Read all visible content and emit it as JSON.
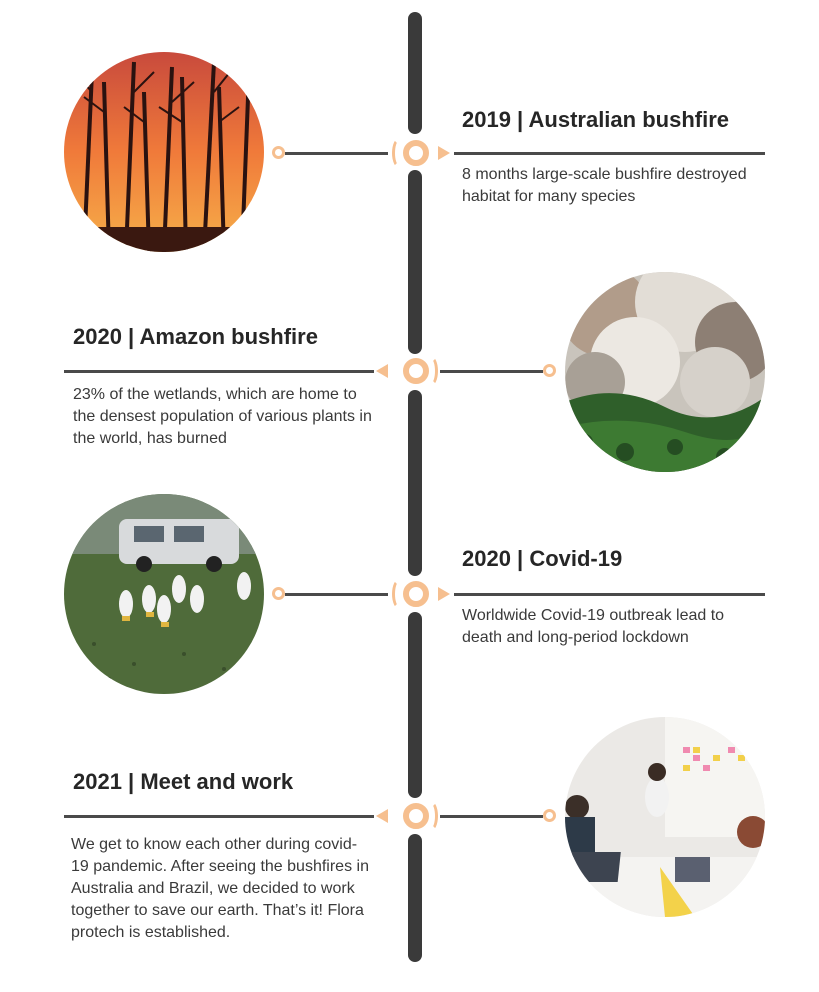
{
  "events": [
    {
      "title": "2019 | Australian bushfire",
      "description": "8 months large-scale bushfire destroyed habitat for many species",
      "image": "australian-bushfire-photo"
    },
    {
      "title": "2020 | Amazon bushfire",
      "description": "23% of the wetlands, which are home to the densest population of various plants in the world, has burned",
      "image": "amazon-bushfire-photo"
    },
    {
      "title": "2020 | Covid-19",
      "description": "Worldwide Covid-19 outbreak lead to death and long-period lockdown",
      "image": "covid-workers-photo"
    },
    {
      "title": "2021 | Meet and work",
      "description": "We get to know each other  during covid-19 pandemic. After seeing the bushfires in Australia and Brazil, we decided to work together to save our earth. That’s it! Flora protech is established.",
      "image": "team-meeting-photo"
    }
  ],
  "colors": {
    "accent": "#f6bf8f",
    "line": "#3a3a3a"
  }
}
